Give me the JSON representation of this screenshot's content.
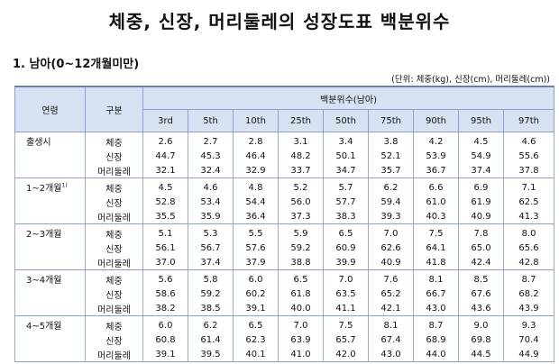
{
  "title": "체중, 신장, 머리둘레의 성장도표 백분위수",
  "section_title": "1. 남아(0~12개월미만)",
  "unit_note": "(단위: 체중(kg), 신장(cm), 머리둘레(cm))",
  "table": {
    "col_age": "연령",
    "col_type": "구분",
    "percentile_header": "백분위수(남아)",
    "percentiles": [
      "3rd",
      "5th",
      "10th",
      "25th",
      "50th",
      "75th",
      "90th",
      "95th",
      "97th"
    ],
    "groups": [
      {
        "age": "출생시",
        "note": "",
        "rows": [
          {
            "type": "체중",
            "values": [
              "2.6",
              "2.7",
              "2.8",
              "3.1",
              "3.4",
              "3.8",
              "4.2",
              "4.5",
              "4.6"
            ]
          },
          {
            "type": "신장",
            "values": [
              "44.7",
              "45.3",
              "46.4",
              "48.2",
              "50.1",
              "52.1",
              "53.9",
              "54.9",
              "55.6"
            ]
          },
          {
            "type": "머리둘레",
            "values": [
              "32.1",
              "32.4",
              "32.9",
              "33.7",
              "34.7",
              "35.7",
              "36.7",
              "37.4",
              "37.8"
            ]
          }
        ]
      },
      {
        "age": "1~2개월",
        "note": "1)",
        "rows": [
          {
            "type": "체중",
            "values": [
              "4.5",
              "4.6",
              "4.8",
              "5.2",
              "5.7",
              "6.2",
              "6.6",
              "6.9",
              "7.1"
            ]
          },
          {
            "type": "신장",
            "values": [
              "52.8",
              "53.4",
              "54.4",
              "56.0",
              "57.7",
              "59.4",
              "61.0",
              "61.9",
              "62.5"
            ]
          },
          {
            "type": "머리둘레",
            "values": [
              "35.5",
              "35.9",
              "36.4",
              "37.3",
              "38.3",
              "39.3",
              "40.3",
              "40.9",
              "41.3"
            ]
          }
        ]
      },
      {
        "age": "2~3개월",
        "note": "",
        "rows": [
          {
            "type": "체중",
            "values": [
              "5.1",
              "5.3",
              "5.5",
              "5.9",
              "6.5",
              "7.0",
              "7.5",
              "7.8",
              "8.0"
            ]
          },
          {
            "type": "신장",
            "values": [
              "56.1",
              "56.7",
              "57.6",
              "59.2",
              "60.9",
              "62.6",
              "64.1",
              "65.0",
              "65.6"
            ]
          },
          {
            "type": "머리둘레",
            "values": [
              "37.0",
              "37.4",
              "37.9",
              "38.8",
              "39.9",
              "40.9",
              "41.8",
              "42.4",
              "42.8"
            ]
          }
        ]
      },
      {
        "age": "3~4개월",
        "note": "",
        "rows": [
          {
            "type": "체중",
            "values": [
              "5.6",
              "5.8",
              "6.0",
              "6.5",
              "7.0",
              "7.6",
              "8.1",
              "8.5",
              "8.7"
            ]
          },
          {
            "type": "신장",
            "values": [
              "58.6",
              "59.2",
              "60.2",
              "61.8",
              "63.5",
              "65.2",
              "66.7",
              "67.6",
              "68.2"
            ]
          },
          {
            "type": "머리둘레",
            "values": [
              "38.2",
              "38.5",
              "39.1",
              "40.0",
              "41.1",
              "42.1",
              "43.0",
              "43.6",
              "43.9"
            ]
          }
        ]
      },
      {
        "age": "4~5개월",
        "note": "",
        "rows": [
          {
            "type": "체중",
            "values": [
              "6.0",
              "6.2",
              "6.5",
              "7.0",
              "7.5",
              "8.1",
              "8.7",
              "9.0",
              "9.3"
            ]
          },
          {
            "type": "신장",
            "values": [
              "60.8",
              "61.4",
              "62.3",
              "63.9",
              "65.7",
              "67.4",
              "68.9",
              "69.8",
              "70.4"
            ]
          },
          {
            "type": "머리둘레",
            "values": [
              "39.1",
              "39.5",
              "40.1",
              "41.0",
              "42.0",
              "43.0",
              "44.0",
              "44.5",
              "44.9"
            ]
          }
        ]
      }
    ]
  }
}
